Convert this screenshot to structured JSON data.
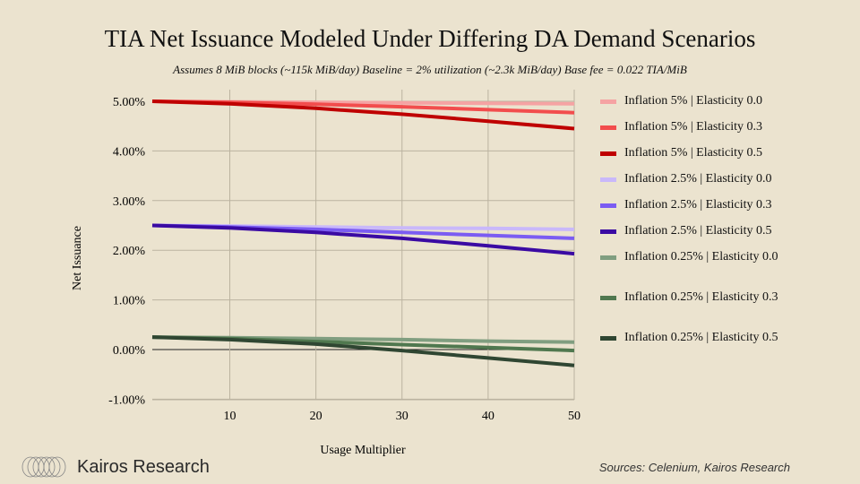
{
  "chart_data": {
    "type": "line",
    "title": "TIA Net Issuance Modeled Under Differing DA Demand Scenarios",
    "subtitle": "Assumes 8 MiB blocks (~115k MiB/day) Baseline = 2% utilization (~2.3k MiB/day) Base fee = 0.022 TIA/MiB",
    "xlabel": "Usage Multiplier",
    "ylabel": "Net Issuance",
    "xlim": [
      1,
      50
    ],
    "ylim": [
      -1,
      5
    ],
    "xticks": [
      10,
      20,
      30,
      40,
      50
    ],
    "yticks": [
      -1,
      0,
      1,
      2,
      3,
      4,
      5
    ],
    "ytick_labels": [
      "-1.00%",
      "0.00%",
      "1.00%",
      "2.00%",
      "3.00%",
      "4.00%",
      "5.00%"
    ],
    "grid": true,
    "legend_position": "right",
    "x": [
      1,
      10,
      20,
      30,
      40,
      50
    ],
    "series": [
      {
        "name": "Inflation 5% | Elasticity 0.0",
        "color": "#f5a3a3",
        "values": [
          5,
          4.99,
          4.98,
          4.97,
          4.96,
          4.95
        ]
      },
      {
        "name": "Inflation 5% | Elasticity 0.3",
        "color": "#f24d4d",
        "values": [
          5,
          4.98,
          4.94,
          4.89,
          4.83,
          4.77
        ]
      },
      {
        "name": "Inflation 5% | Elasticity 0.5",
        "color": "#bf0000",
        "values": [
          5,
          4.95,
          4.86,
          4.74,
          4.6,
          4.45
        ]
      },
      {
        "name": "Inflation 2.5% | Elasticity 0.0",
        "color": "#c9b8fa",
        "values": [
          2.5,
          2.49,
          2.47,
          2.45,
          2.44,
          2.42
        ]
      },
      {
        "name": "Inflation 2.5% | Elasticity 0.3",
        "color": "#7b5cf2",
        "values": [
          2.5,
          2.47,
          2.42,
          2.36,
          2.3,
          2.24
        ]
      },
      {
        "name": "Inflation 2.5% | Elasticity 0.5",
        "color": "#3a0aa3",
        "values": [
          2.5,
          2.45,
          2.36,
          2.24,
          2.09,
          1.93
        ]
      },
      {
        "name": "Inflation 0.25% | Elasticity 0.0",
        "color": "#809e80",
        "values": [
          0.25,
          0.24,
          0.22,
          0.2,
          0.17,
          0.15
        ]
      },
      {
        "name": "Inflation 0.25% | Elasticity 0.3",
        "color": "#50784f",
        "values": [
          0.25,
          0.22,
          0.16,
          0.1,
          0.04,
          -0.02
        ]
      },
      {
        "name": "Inflation 0.25% | Elasticity 0.5",
        "color": "#2f4632",
        "values": [
          0.25,
          0.2,
          0.11,
          -0.02,
          -0.17,
          -0.32
        ]
      }
    ]
  },
  "brand": "Kairos Research",
  "source": "Sources: Celenium, Kairos Research"
}
